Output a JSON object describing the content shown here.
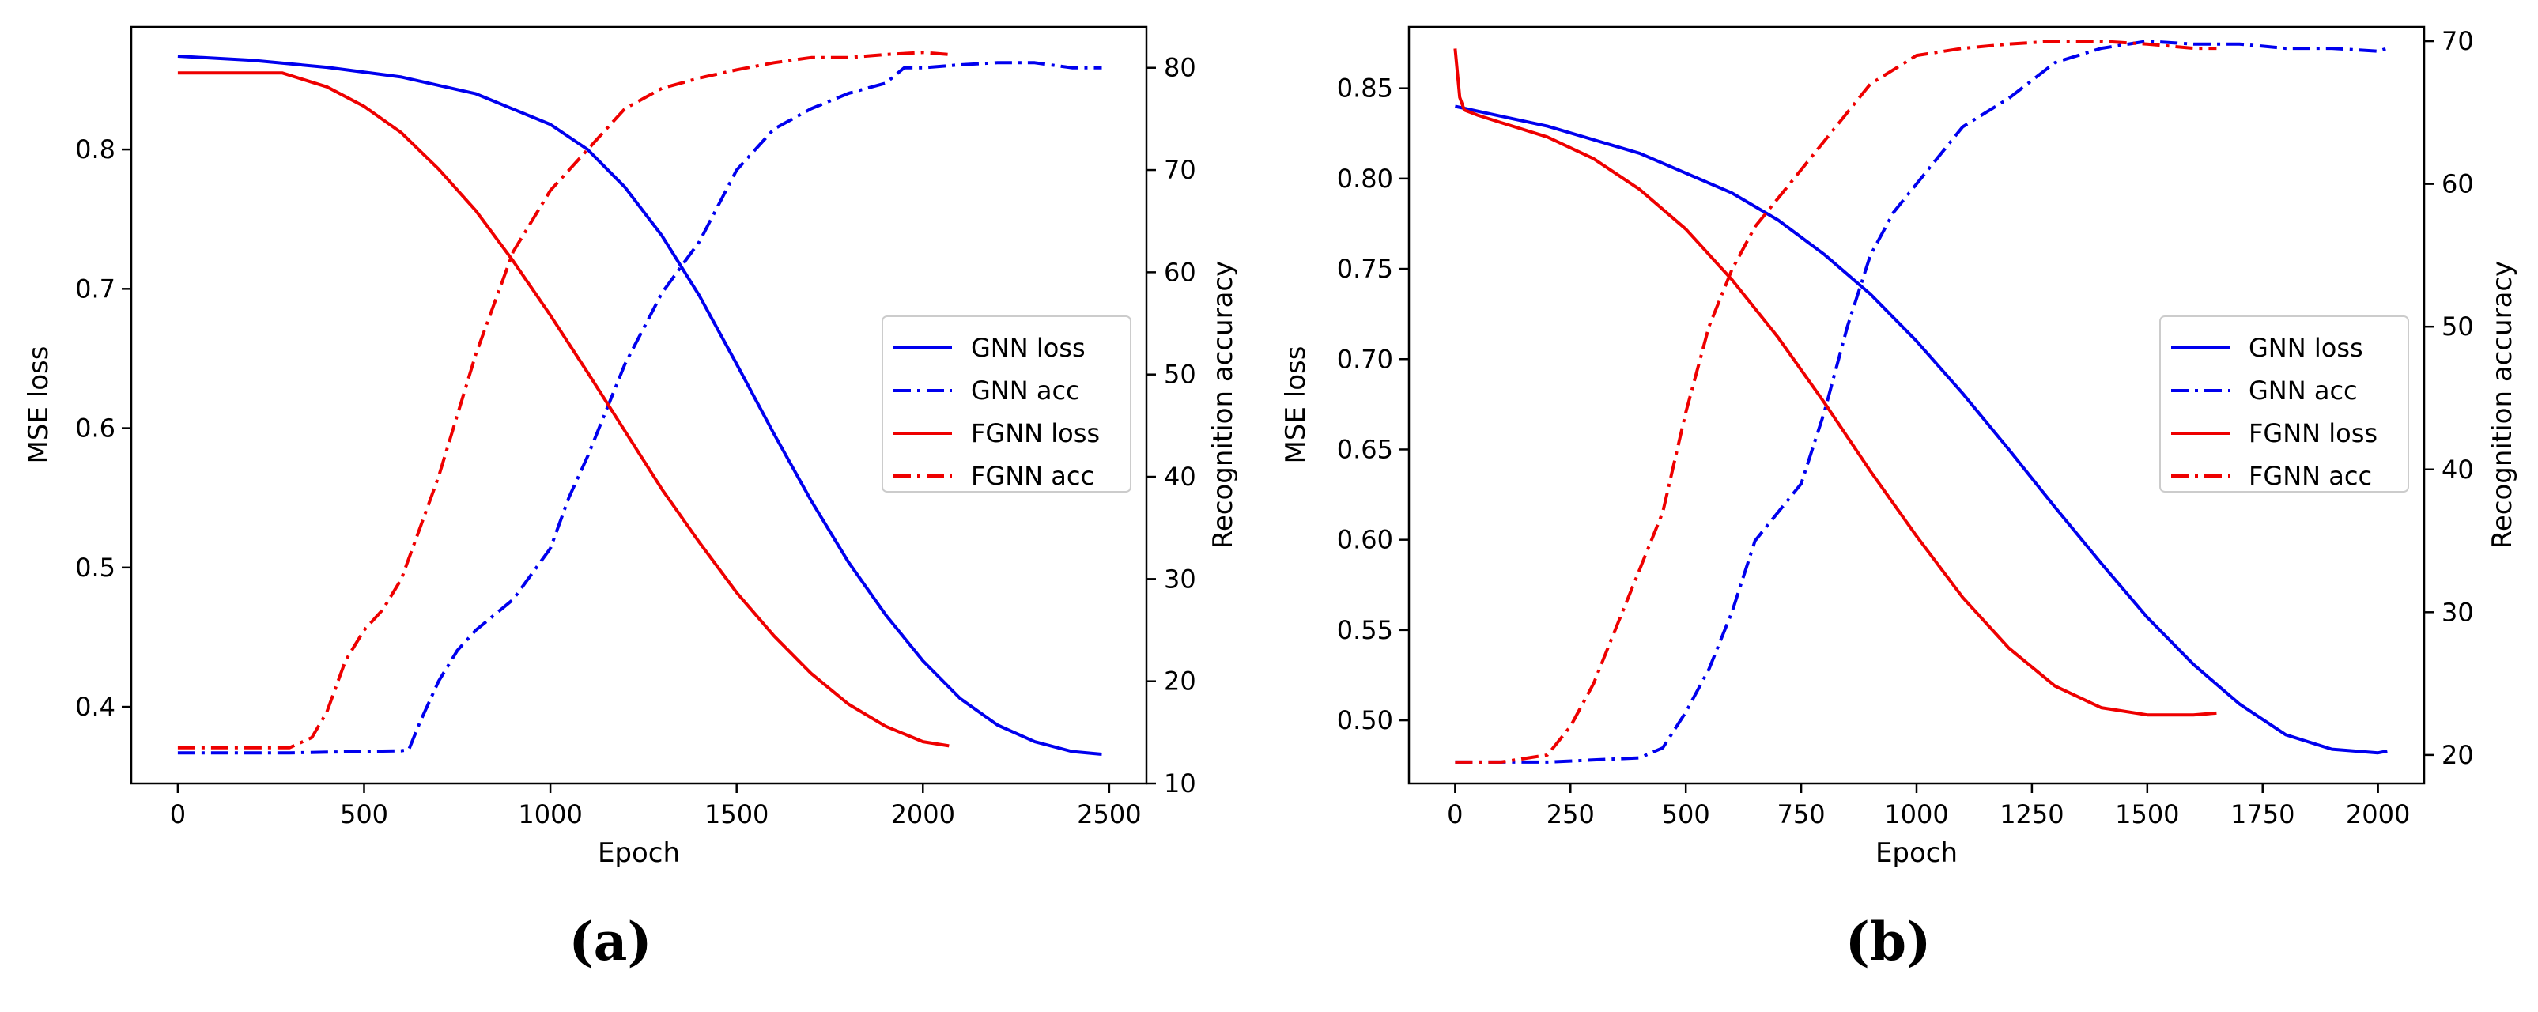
{
  "figure": {
    "panel_labels": [
      "(a)",
      "(b)"
    ]
  },
  "colors": {
    "gnn": "#0000ee",
    "fgnn": "#ee0000"
  },
  "chart_data": [
    {
      "type": "line",
      "panel": "(a)",
      "xlabel": "Epoch",
      "ylabel": "MSE loss",
      "y2label": "Recognition accuracy",
      "xlim": [
        -125,
        2600
      ],
      "ylim": [
        0.345,
        0.888
      ],
      "y2lim": [
        10,
        84
      ],
      "xticks": [
        0,
        500,
        1000,
        1500,
        2000,
        2500
      ],
      "yticks": [
        0.4,
        0.5,
        0.6,
        0.7,
        0.8
      ],
      "ytick_labels": [
        "0.4",
        "0.5",
        "0.6",
        "0.7",
        "0.8"
      ],
      "y2ticks": [
        10,
        20,
        30,
        40,
        50,
        60,
        70,
        80
      ],
      "legend": {
        "position": "center-right",
        "entries": [
          "GNN loss",
          "GNN acc",
          "FGNN loss",
          "FGNN acc"
        ]
      },
      "series": [
        {
          "name": "GNN loss",
          "axis": "left",
          "style": "solid",
          "color": "#0000ee",
          "x": [
            0,
            200,
            400,
            600,
            800,
            1000,
            1100,
            1200,
            1300,
            1400,
            1500,
            1600,
            1700,
            1800,
            1900,
            2000,
            2100,
            2200,
            2300,
            2400,
            2480
          ],
          "y": [
            0.867,
            0.864,
            0.859,
            0.852,
            0.84,
            0.818,
            0.8,
            0.773,
            0.738,
            0.695,
            0.646,
            0.596,
            0.548,
            0.504,
            0.466,
            0.433,
            0.406,
            0.387,
            0.375,
            0.368,
            0.366
          ]
        },
        {
          "name": "GNN acc",
          "axis": "right",
          "style": "dashdot",
          "color": "#0000ee",
          "x": [
            0,
            300,
            600,
            620,
            650,
            700,
            750,
            800,
            900,
            1000,
            1050,
            1100,
            1200,
            1300,
            1400,
            1500,
            1600,
            1700,
            1800,
            1900,
            1950,
            2000,
            2100,
            2200,
            2300,
            2400,
            2480
          ],
          "y": [
            13,
            13,
            13.2,
            13.3,
            16,
            20,
            23,
            25,
            28,
            33,
            38,
            42,
            51,
            58,
            63,
            70,
            74,
            76,
            77.5,
            78.5,
            80,
            80,
            80.3,
            80.5,
            80.5,
            80,
            80
          ]
        },
        {
          "name": "FGNN loss",
          "axis": "left",
          "style": "solid",
          "color": "#ee0000",
          "x": [
            0,
            280,
            400,
            500,
            600,
            700,
            800,
            900,
            1000,
            1100,
            1200,
            1300,
            1400,
            1500,
            1600,
            1700,
            1800,
            1900,
            2000,
            2070
          ],
          "y": [
            0.855,
            0.855,
            0.845,
            0.831,
            0.812,
            0.786,
            0.756,
            0.72,
            0.681,
            0.64,
            0.598,
            0.556,
            0.518,
            0.482,
            0.451,
            0.424,
            0.402,
            0.386,
            0.375,
            0.372
          ]
        },
        {
          "name": "FGNN acc",
          "axis": "right",
          "style": "dashdot",
          "color": "#ee0000",
          "x": [
            0,
            300,
            360,
            400,
            450,
            500,
            550,
            600,
            650,
            700,
            750,
            800,
            850,
            900,
            1000,
            1100,
            1200,
            1300,
            1400,
            1500,
            1600,
            1700,
            1800,
            1900,
            2000,
            2070
          ],
          "y": [
            13.5,
            13.5,
            14.5,
            17,
            22,
            25,
            27,
            30,
            35,
            40,
            46,
            52,
            57,
            62,
            68,
            72,
            76,
            78,
            79,
            79.8,
            80.5,
            81,
            81,
            81.3,
            81.5,
            81.3
          ]
        }
      ]
    },
    {
      "type": "line",
      "panel": "(b)",
      "xlabel": "Epoch",
      "ylabel": "MSE loss",
      "y2label": "Recognition accuracy",
      "xlim": [
        -100,
        2100
      ],
      "ylim": [
        0.465,
        0.884
      ],
      "y2lim": [
        18,
        71
      ],
      "xticks": [
        0,
        250,
        500,
        750,
        1000,
        1250,
        1500,
        1750,
        2000
      ],
      "yticks": [
        0.5,
        0.55,
        0.6,
        0.65,
        0.7,
        0.75,
        0.8,
        0.85
      ],
      "ytick_labels": [
        "0.50",
        "0.55",
        "0.60",
        "0.65",
        "0.70",
        "0.75",
        "0.80",
        "0.85"
      ],
      "y2ticks": [
        20,
        30,
        40,
        50,
        60,
        70
      ],
      "legend": {
        "position": "center-right",
        "entries": [
          "GNN loss",
          "GNN acc",
          "FGNN loss",
          "FGNN acc"
        ]
      },
      "series": [
        {
          "name": "GNN loss",
          "axis": "left",
          "style": "solid",
          "color": "#0000ee",
          "x": [
            0,
            200,
            400,
            600,
            700,
            800,
            900,
            1000,
            1100,
            1200,
            1300,
            1400,
            1500,
            1600,
            1700,
            1800,
            1900,
            2000,
            2020
          ],
          "y": [
            0.84,
            0.829,
            0.814,
            0.792,
            0.777,
            0.758,
            0.736,
            0.71,
            0.681,
            0.65,
            0.618,
            0.587,
            0.557,
            0.531,
            0.509,
            0.492,
            0.484,
            0.482,
            0.483
          ]
        },
        {
          "name": "GNN acc",
          "axis": "right",
          "style": "dashdot",
          "color": "#0000ee",
          "x": [
            0,
            200,
            400,
            450,
            500,
            550,
            600,
            650,
            700,
            750,
            800,
            850,
            900,
            950,
            1000,
            1100,
            1200,
            1300,
            1400,
            1500,
            1600,
            1700,
            1800,
            1900,
            2000,
            2020
          ],
          "y": [
            19.5,
            19.5,
            19.8,
            20.5,
            23,
            26,
            30,
            35,
            37,
            39,
            44,
            50,
            55,
            58,
            60,
            64,
            66,
            68.5,
            69.5,
            70,
            69.8,
            69.8,
            69.5,
            69.5,
            69.3,
            69.5
          ]
        },
        {
          "name": "FGNN loss",
          "axis": "right_loss",
          "style": "solid",
          "color": "#ee0000",
          "axis_note": "left",
          "x": [
            0,
            10,
            20,
            50,
            100,
            200,
            300,
            400,
            500,
            600,
            700,
            800,
            900,
            1000,
            1100,
            1200,
            1300,
            1400,
            1500,
            1600,
            1650
          ],
          "y": [
            0.872,
            0.845,
            0.838,
            0.835,
            0.831,
            0.823,
            0.811,
            0.794,
            0.772,
            0.744,
            0.712,
            0.676,
            0.638,
            0.602,
            0.568,
            0.54,
            0.519,
            0.507,
            0.503,
            0.503,
            0.504
          ]
        },
        {
          "name": "FGNN acc",
          "axis": "right",
          "style": "dashdot",
          "color": "#ee0000",
          "x": [
            0,
            100,
            200,
            250,
            300,
            350,
            400,
            450,
            500,
            550,
            600,
            650,
            700,
            750,
            800,
            850,
            900,
            950,
            1000,
            1100,
            1200,
            1300,
            1400,
            1500,
            1600,
            1650
          ],
          "y": [
            19.5,
            19.5,
            20,
            22,
            25,
            29,
            33,
            37,
            44,
            50,
            54,
            57,
            59,
            61,
            63,
            65,
            67,
            68,
            69,
            69.5,
            69.8,
            70,
            70,
            69.8,
            69.5,
            69.5
          ]
        }
      ]
    }
  ]
}
